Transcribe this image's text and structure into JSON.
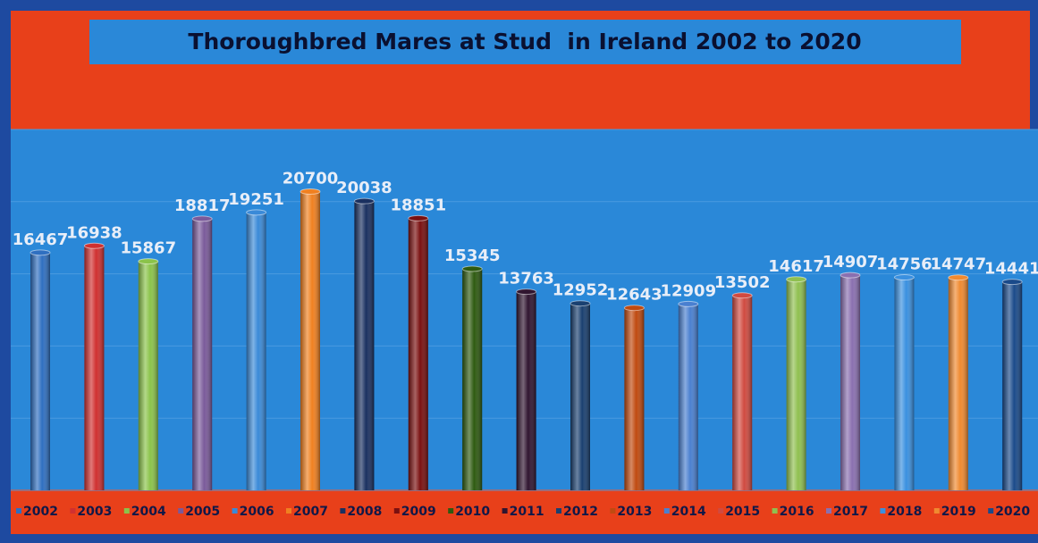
{
  "chart_data": {
    "type": "bar",
    "title": "Thoroughbred Mares at Stud  in Ireland 2002 to 2020",
    "categories": [
      "2002",
      "2003",
      "2004",
      "2005",
      "2006",
      "2007",
      "2008",
      "2009",
      "2010",
      "2011",
      "2012",
      "2013",
      "2014",
      "2015",
      "2016",
      "2017",
      "2018",
      "2019",
      "2020"
    ],
    "values": [
      16467,
      16938,
      15867,
      18817,
      19251,
      20700,
      20038,
      18851,
      15345,
      13763,
      12952,
      12643,
      12909,
      13502,
      14617,
      14907,
      14756,
      14747,
      14441
    ],
    "colors": [
      "#2f6fc0",
      "#d03030",
      "#8bc34a",
      "#7a5a9a",
      "#3a8ad8",
      "#f08020",
      "#1a3060",
      "#7a1010",
      "#2e5a10",
      "#301530",
      "#1a4070",
      "#c04a10",
      "#4a80d0",
      "#d04a40",
      "#90c050",
      "#8a70b0",
      "#3a90e0",
      "#f08a30",
      "#1a4a8a"
    ],
    "ylim": [
      0,
      25000
    ],
    "yticks": [
      0,
      5000,
      10000,
      15000,
      20000,
      25000
    ],
    "grid": true,
    "legend": "bottom"
  }
}
